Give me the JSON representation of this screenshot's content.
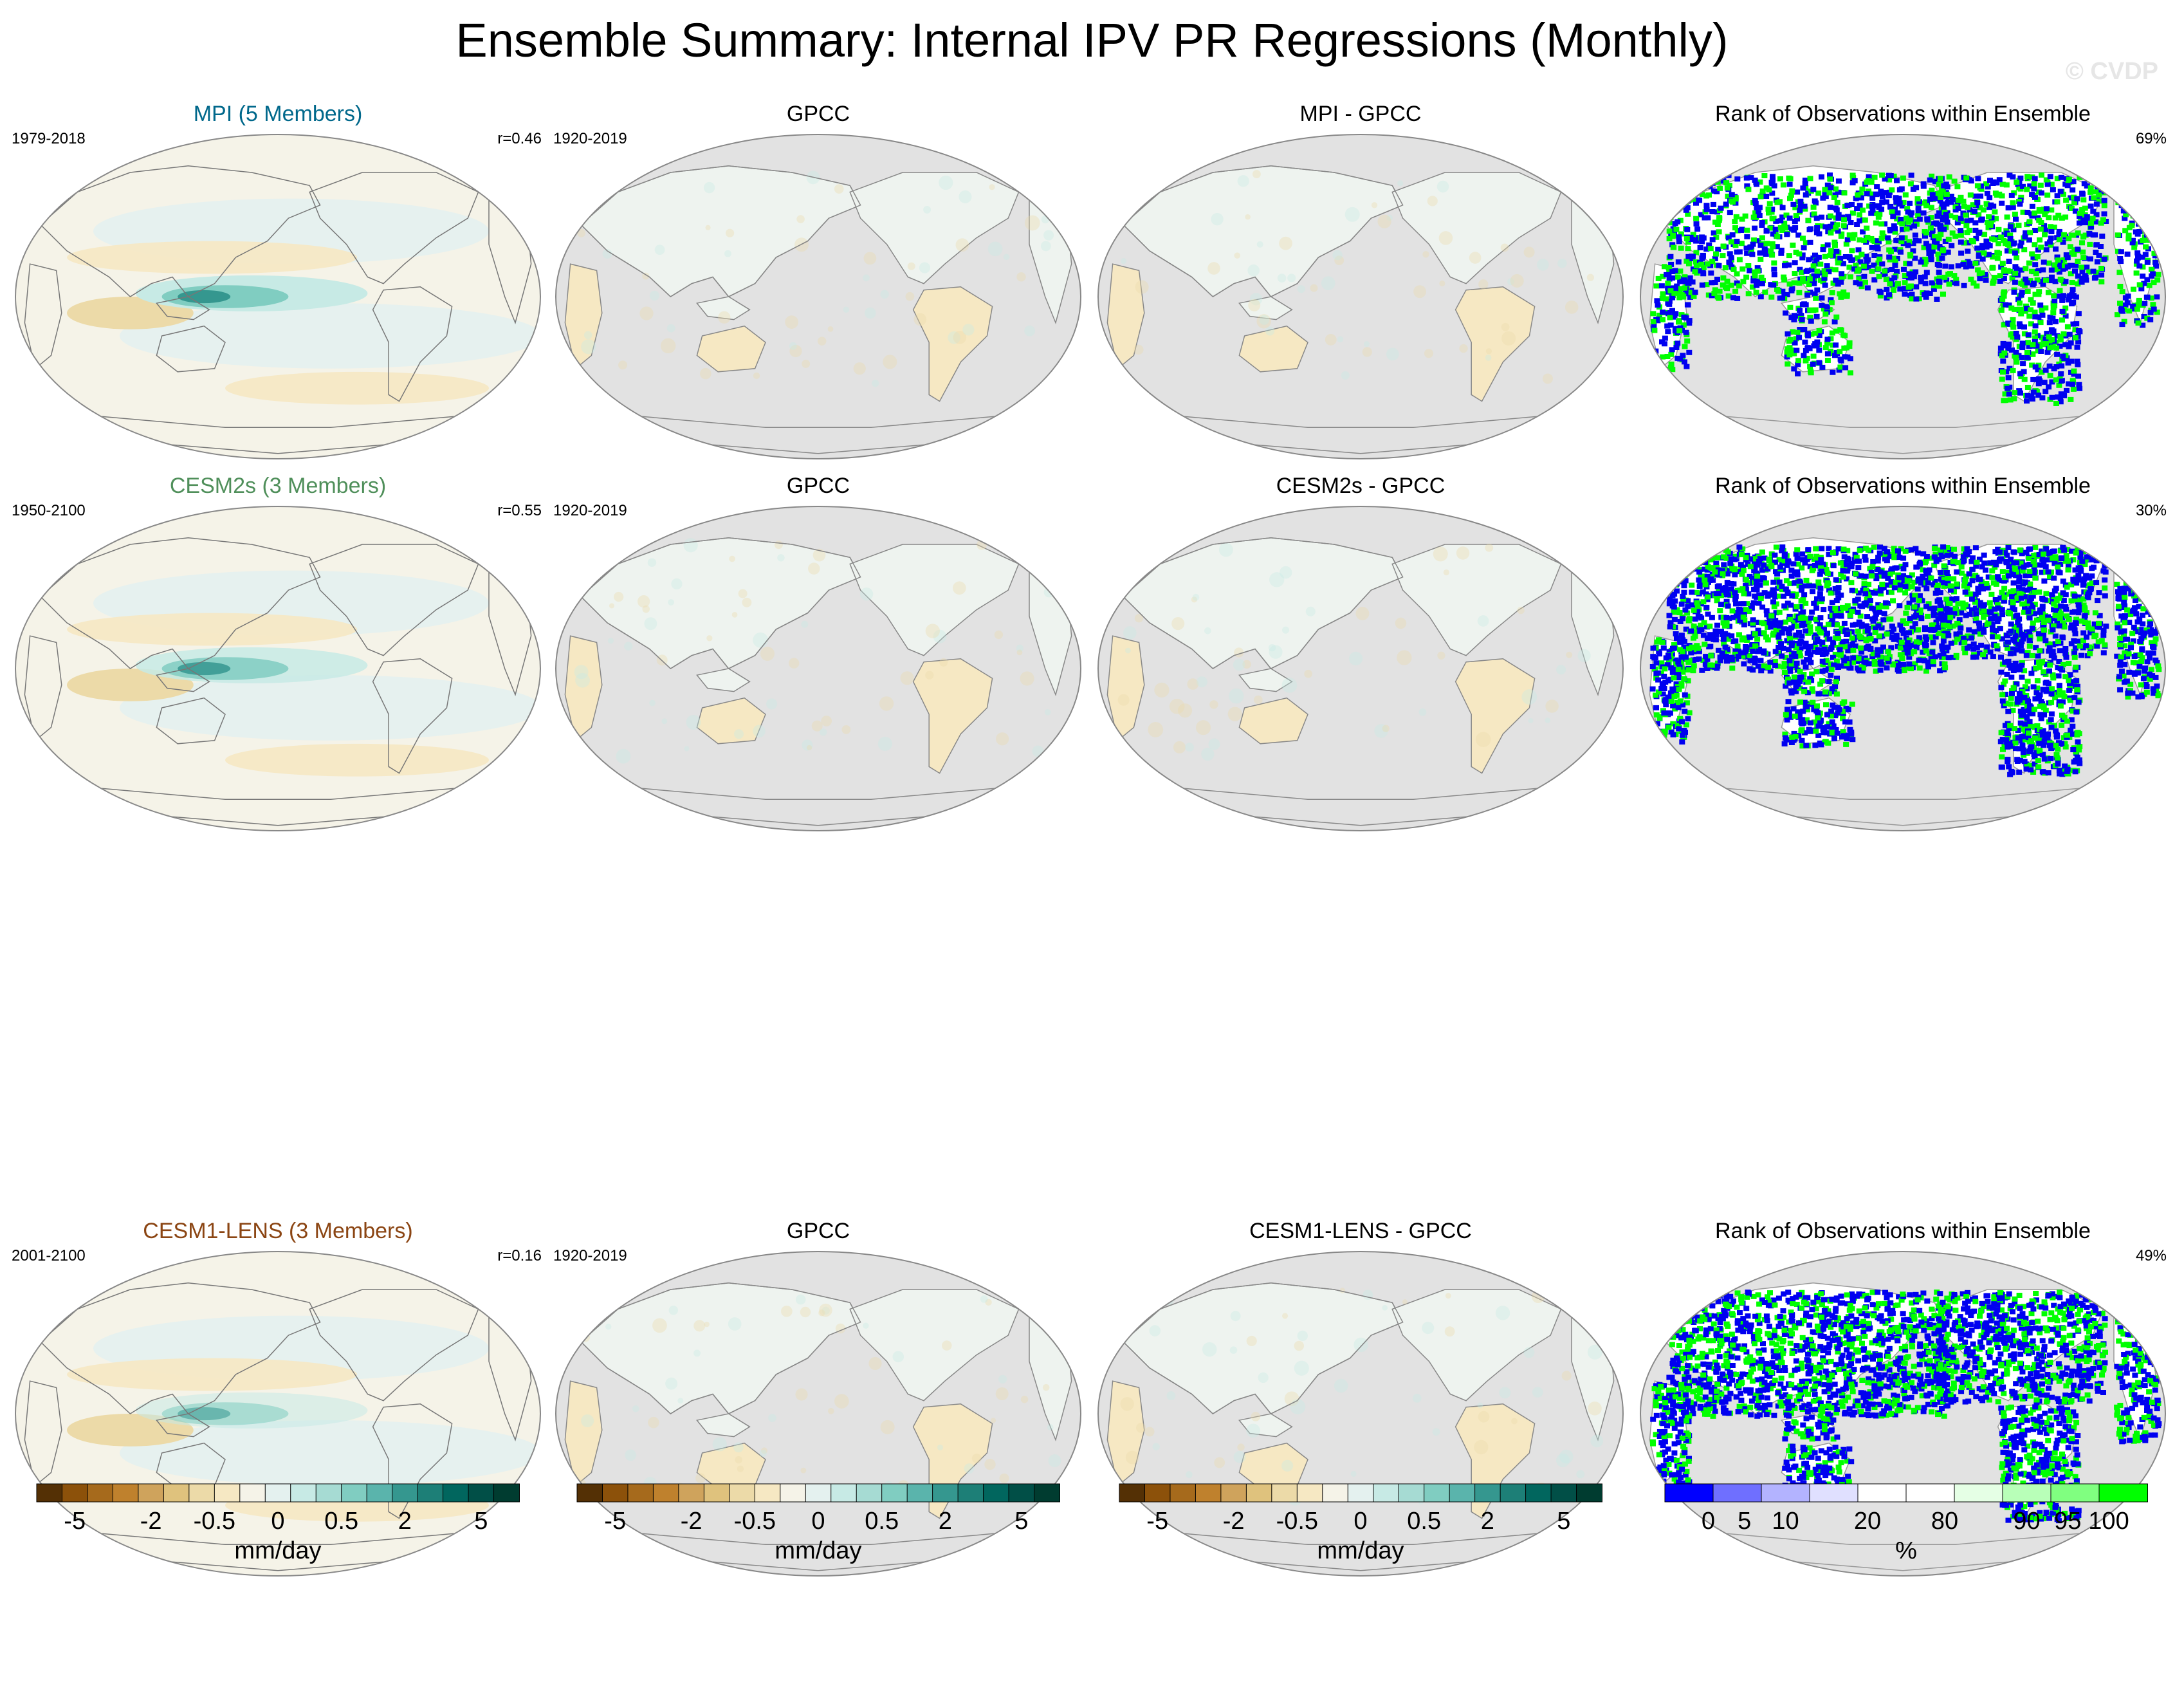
{
  "title": "Ensemble Summary: Internal IPV PR Regressions (Monthly)",
  "watermark": "© CVDP",
  "colors": {
    "ocean_gray": "#e2e2e2",
    "rank_blue": "#0000f0",
    "rank_green": "#00ff00",
    "title_mpi": "#00688b",
    "title_cesm2s": "#4f8f5a",
    "title_cesm1": "#8b4513"
  },
  "rows": [
    {
      "model_title": "MPI (5 Members)",
      "model_years": "1979-2018",
      "model_r": "r=0.46",
      "obs_title": "GPCC",
      "obs_years": "1920-2019",
      "diff_title": "MPI - GPCC",
      "rank_title": "Rank of Observations within Ensemble",
      "rank_pct": "69%"
    },
    {
      "model_title": "CESM2s (3 Members)",
      "model_years": "1950-2100",
      "model_r": "r=0.55",
      "obs_title": "GPCC",
      "obs_years": "1920-2019",
      "diff_title": "CESM2s - GPCC",
      "rank_title": "Rank of Observations within Ensemble",
      "rank_pct": "30%"
    },
    {
      "model_title": "CESM1-LENS (3 Members)",
      "model_years": "2001-2100",
      "model_r": "r=0.16",
      "obs_title": "GPCC",
      "obs_years": "1920-2019",
      "diff_title": "CESM1-LENS - GPCC",
      "rank_title": "Rank of Observations within Ensemble",
      "rank_pct": "49%"
    }
  ],
  "colorbars": {
    "pr": {
      "colors": [
        "#543005",
        "#8c510a",
        "#a66a1c",
        "#bf812d",
        "#cfa35c",
        "#dfc27d",
        "#ecdaa8",
        "#f6e8c3",
        "#f5f3e8",
        "#e4f1ef",
        "#c7eae5",
        "#a6dbd3",
        "#80cdc1",
        "#5ab4ac",
        "#35978f",
        "#1d7f77",
        "#01665e",
        "#014f47",
        "#003c30"
      ],
      "labels": [
        "-5",
        "-2",
        "-0.5",
        "0",
        "0.5",
        "2",
        "5"
      ],
      "units": "mm/day"
    },
    "rank": {
      "colors": [
        "#0000ff",
        "#6f6fff",
        "#b3b3ff",
        "#e0e0ff",
        "#ffffff",
        "#ffffff",
        "#e5ffe5",
        "#b8ffb8",
        "#80ff80",
        "#00ff00"
      ],
      "labels": [
        "0",
        "5",
        "10",
        "20",
        "80",
        "90",
        "95",
        "100"
      ],
      "units": "%"
    }
  }
}
